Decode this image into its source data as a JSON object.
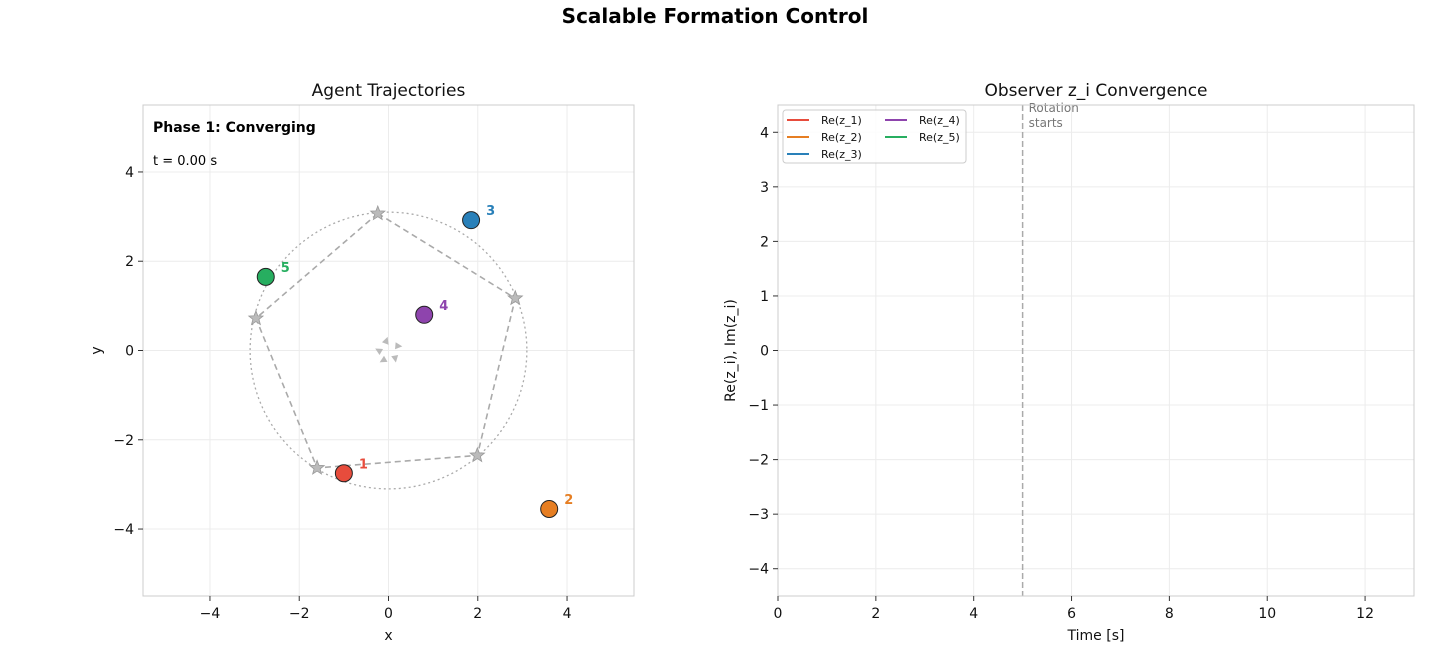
{
  "figure": {
    "title": "Scalable Formation Control"
  },
  "chart_data": [
    {
      "type": "scatter",
      "title": "Agent Trajectories",
      "xlabel": "x",
      "ylabel": "y",
      "xlim": [
        -5.5,
        5.5
      ],
      "ylim": [
        -5.5,
        5.5
      ],
      "xticks": [
        -4,
        -2,
        0,
        2,
        4
      ],
      "yticks": [
        -4,
        -2,
        0,
        2,
        4
      ],
      "xtick_labels": [
        "−4",
        "−2",
        "0",
        "2",
        "4"
      ],
      "ytick_labels": [
        "−4",
        "−2",
        "0",
        "2",
        "4"
      ],
      "grid": true,
      "phase_text": "Phase 1: Converging",
      "time_text": "t = 0.00 s",
      "target_circle": {
        "center": [
          0,
          0
        ],
        "radius": 3.1
      },
      "targets": [
        {
          "x": -0.24,
          "y": 3.07
        },
        {
          "x": 2.84,
          "y": 1.17
        },
        {
          "x": 1.99,
          "y": -2.35
        },
        {
          "x": -1.6,
          "y": -2.63
        },
        {
          "x": -2.97,
          "y": 0.72
        }
      ],
      "agents": [
        {
          "label": "1",
          "x": -1.0,
          "y": -2.75,
          "color": "#e74c3c"
        },
        {
          "label": "2",
          "x": 3.6,
          "y": -3.55,
          "color": "#e67e22"
        },
        {
          "label": "3",
          "x": 1.85,
          "y": 2.92,
          "color": "#2980b9"
        },
        {
          "label": "4",
          "x": 0.8,
          "y": 0.8,
          "color": "#8e44ad"
        },
        {
          "label": "5",
          "x": -2.75,
          "y": 1.65,
          "color": "#27ae60"
        }
      ],
      "center_markers": [
        {
          "x": -0.05,
          "y": 0.22,
          "angle": 20
        },
        {
          "x": 0.22,
          "y": 0.1,
          "angle": 95
        },
        {
          "x": 0.15,
          "y": -0.18,
          "angle": 170
        },
        {
          "x": -0.12,
          "y": -0.22,
          "angle": 240
        },
        {
          "x": -0.22,
          "y": 0.0,
          "angle": 300
        }
      ]
    },
    {
      "type": "line",
      "title": "Observer z_i Convergence",
      "xlabel": "Time [s]",
      "ylabel": "Re(z_i),  Im(z_i)",
      "xlim": [
        0,
        13
      ],
      "ylim": [
        -4.5,
        4.5
      ],
      "xticks": [
        0,
        2,
        4,
        6,
        8,
        10,
        12
      ],
      "yticks": [
        -4,
        -3,
        -2,
        -1,
        0,
        1,
        2,
        3,
        4
      ],
      "xtick_labels": [
        "0",
        "2",
        "4",
        "6",
        "8",
        "10",
        "12"
      ],
      "ytick_labels": [
        "−4",
        "−3",
        "−2",
        "−1",
        "0",
        "1",
        "2",
        "3",
        "4"
      ],
      "grid": true,
      "legend_placement": "top-left",
      "series": [
        {
          "name": "Re(z_1)",
          "color": "#e74c3c",
          "x": [],
          "y": []
        },
        {
          "name": "Re(z_2)",
          "color": "#e67e22",
          "x": [],
          "y": []
        },
        {
          "name": "Re(z_3)",
          "color": "#2980b9",
          "x": [],
          "y": []
        },
        {
          "name": "Re(z_4)",
          "color": "#8e44ad",
          "x": [],
          "y": []
        },
        {
          "name": "Re(z_5)",
          "color": "#27ae60",
          "x": [],
          "y": []
        }
      ],
      "vline": {
        "x": 5,
        "label_line1": "Rotation",
        "label_line2": "starts"
      }
    }
  ]
}
